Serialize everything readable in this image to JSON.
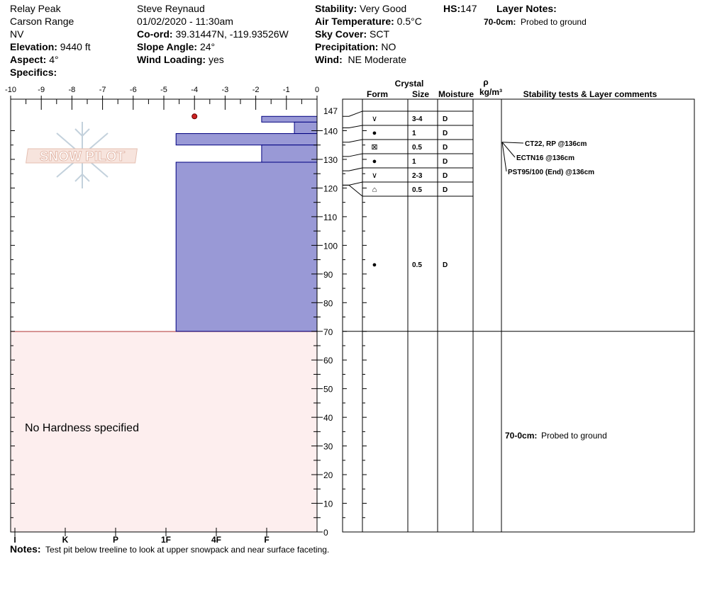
{
  "site": {
    "name": "Relay Peak",
    "range": "Carson Range",
    "state": "NV",
    "elevation_label": "Elevation:",
    "elevation": "9440 ft",
    "aspect_label": "Aspect:",
    "aspect": "4°",
    "specifics_label": "Specifics:"
  },
  "observer": {
    "name": "Steve Reynaud",
    "datetime": "01/02/2020 - 11:30am",
    "coord_label": "Co-ord:",
    "coord": "39.31447N, -119.93526W",
    "slope_label": "Slope Angle:",
    "slope": "24°",
    "wind_loading_label": "Wind Loading:",
    "wind_loading": "yes"
  },
  "conditions": {
    "stability_label": "Stability:",
    "stability": "Very Good",
    "air_temp_label": "Air Temperature:",
    "air_temp": "0.5°C",
    "sky_label": "Sky Cover:",
    "sky": "SCT",
    "precip_label": "Precipitation:",
    "precip": "NO",
    "wind_label": "Wind:",
    "wind": "NE Moderate",
    "hs_label": "HS:",
    "hs": "147"
  },
  "layer_notes": {
    "title": "Layer Notes:",
    "range": "70-0cm:",
    "text": "Probed to ground"
  },
  "notes": {
    "label": "Notes:",
    "text": "Test pit below treeline to look at upper snowpack and near surface faceting."
  },
  "logo_text": "SNOW PILOT",
  "no_hardness": "No Hardness specified",
  "table_headers": {
    "crystal": "Crystal",
    "form": "Form",
    "size": "Size",
    "moisture": "Moisture",
    "rho": "ρ",
    "density_unit": "kg/m³",
    "stability_tests": "Stability tests & Layer comments"
  },
  "layer_rows": [
    {
      "form": "∨",
      "size": "3-4",
      "moisture": "D"
    },
    {
      "form": "●",
      "size": "1",
      "moisture": "D"
    },
    {
      "form": "⊠",
      "size": "0.5",
      "moisture": "D"
    },
    {
      "form": "●",
      "size": "1",
      "moisture": "D"
    },
    {
      "form": "∨",
      "size": "2-3",
      "moisture": "D"
    },
    {
      "form": "⌂",
      "size": "0.5",
      "moisture": "D"
    },
    {
      "form": "●",
      "size": "0.5",
      "moisture": "D"
    }
  ],
  "stability_tests": [
    {
      "text": "CT22, RP @136cm"
    },
    {
      "text": "ECTN16 @136cm"
    },
    {
      "text": "PST95/100 (End) @136cm"
    }
  ],
  "colors": {
    "hardness_fill": "#9999d6",
    "hardness_stroke": "#000080",
    "no_hardness_fill": "#fdeeee",
    "no_hardness_stroke": "#b03030",
    "temp_point": "#cc2222",
    "logo": "#c8d4de"
  },
  "chart_data": {
    "type": "bar",
    "top_axis": {
      "label": "",
      "ticks": [
        -10,
        -9,
        -8,
        -7,
        -6,
        -5,
        -4,
        -3,
        -2,
        -1,
        0
      ]
    },
    "bottom_axis": {
      "label": "",
      "ticks": [
        "I",
        "K",
        "P",
        "1F",
        "4F",
        "F"
      ]
    },
    "y_axis": {
      "label": "",
      "ticks": [
        0,
        10,
        20,
        30,
        40,
        50,
        60,
        70,
        80,
        90,
        100,
        110,
        120,
        130,
        140,
        147
      ],
      "range": [
        0,
        147
      ]
    },
    "hardness_index_scale": {
      "F": 1,
      "4F": 2,
      "1F": 3,
      "P": 4,
      "K": 5,
      "I": 6
    },
    "hardness_layers": [
      {
        "top": 145,
        "bottom": 143,
        "hardness_index": 1.1
      },
      {
        "top": 143,
        "bottom": 139,
        "hardness_index": 0.45
      },
      {
        "top": 139,
        "bottom": 135,
        "hardness_index": 2.8
      },
      {
        "top": 135,
        "bottom": 129,
        "hardness_index": 1.1
      },
      {
        "top": 129,
        "bottom": 70,
        "hardness_index": 2.8
      }
    ],
    "no_hardness_range": [
      0,
      70
    ],
    "temperature_points": [
      {
        "depth": 145,
        "temp": -4.0
      }
    ],
    "layer_boundaries": [
      145,
      141,
      136,
      131,
      126,
      121,
      70
    ],
    "test_depth": 136
  }
}
